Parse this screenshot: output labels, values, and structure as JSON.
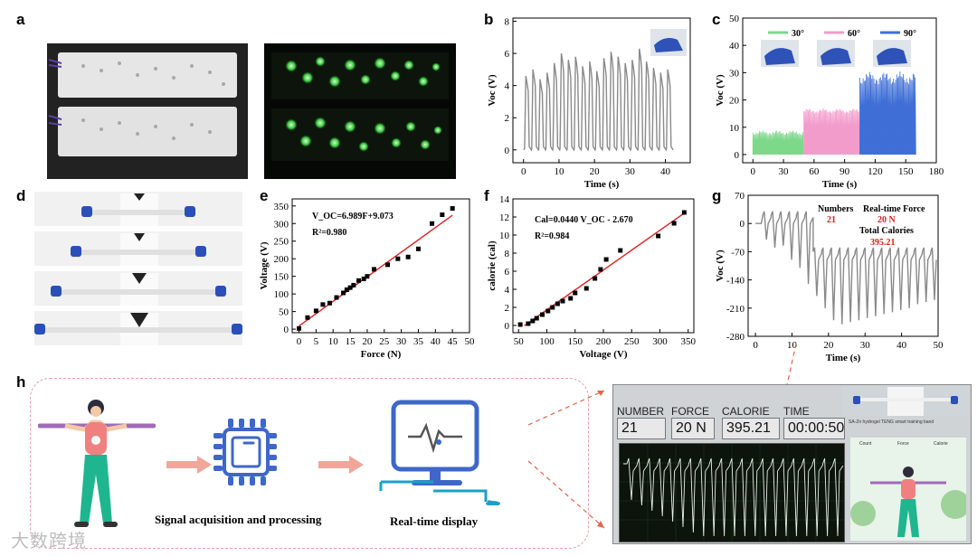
{
  "panels": {
    "a": "a",
    "b": "b",
    "c": "c",
    "d": "d",
    "e": "e",
    "f": "f",
    "g": "g",
    "h": "h"
  },
  "panel_b": {
    "xlabel": "Time (s)",
    "ylabel": "Voc (V)",
    "xticks": [
      "0",
      "10",
      "20",
      "30",
      "40"
    ],
    "yticks": [
      "0",
      "2",
      "4",
      "6",
      "8"
    ]
  },
  "panel_c": {
    "xlabel": "Time (s)",
    "ylabel": "Voc (V)",
    "xticks": [
      "0",
      "30",
      "60",
      "90",
      "120",
      "150",
      "180"
    ],
    "yticks": [
      "0",
      "10",
      "20",
      "30",
      "40",
      "50"
    ],
    "legend": [
      {
        "label": "30°",
        "color": "#7dd88a"
      },
      {
        "label": "60°",
        "color": "#f29ccc"
      },
      {
        "label": "90°",
        "color": "#3f6fd6"
      }
    ]
  },
  "panel_g": {
    "xlabel": "Time (s)",
    "ylabel": "Voc (V)",
    "xticks": [
      "0",
      "10",
      "20",
      "30",
      "40",
      "50"
    ],
    "yticks": [
      "70",
      "0",
      "-70",
      "-140",
      "-210",
      "-280"
    ],
    "numbers_label": "Numbers",
    "numbers_value": "21",
    "force_label": "Real-time Force",
    "force_value": "20 N",
    "calories_label": "Total Calories",
    "calories_value": "395.21"
  },
  "chart_data": [
    {
      "type": "scatter",
      "panel": "e",
      "title": "",
      "xlabel": "Force (N)",
      "ylabel": "Voltage (V)",
      "x": [
        0,
        2.5,
        5,
        7,
        9,
        11,
        13,
        14,
        15,
        16,
        17.5,
        19,
        20,
        22,
        26,
        29,
        32,
        35,
        39,
        42,
        45
      ],
      "y": [
        2,
        33,
        52,
        70,
        74,
        90,
        103,
        112,
        118,
        125,
        138,
        143,
        150,
        170,
        183,
        200,
        205,
        228,
        300,
        325,
        343
      ],
      "fit_label": "V_OC=6.989F+9.073",
      "r2_label": "R²=0.980",
      "xlim": [
        -2,
        50
      ],
      "ylim": [
        -10,
        370
      ],
      "xticks": [
        "0",
        "5",
        "10",
        "15",
        "20",
        "25",
        "30",
        "35",
        "40",
        "45",
        "50"
      ],
      "yticks": [
        "0",
        "50",
        "100",
        "150",
        "200",
        "250",
        "300",
        "350"
      ]
    },
    {
      "type": "scatter",
      "panel": "f",
      "title": "",
      "xlabel": "Voltage (V)",
      "ylabel": "calorie (cal)",
      "x": [
        53,
        67,
        75,
        82,
        92,
        102,
        110,
        119,
        128,
        142,
        150,
        170,
        185,
        195,
        205,
        230,
        297,
        325,
        343
      ],
      "y": [
        0.1,
        0.2,
        0.5,
        0.8,
        1.2,
        1.6,
        2.0,
        2.4,
        2.7,
        3.0,
        3.6,
        4.1,
        5.2,
        6.2,
        7.3,
        8.3,
        9.9,
        11.3,
        12.5
      ],
      "fit_label": "Cal=0.0440 V_OC - 2.670",
      "r2_label": "R²=0.984",
      "xlim": [
        40,
        360
      ],
      "ylim": [
        -0.8,
        14
      ],
      "xticks": [
        "50",
        "100",
        "150",
        "200",
        "250",
        "300",
        "350"
      ],
      "yticks": [
        "0",
        "2",
        "4",
        "6",
        "8",
        "10",
        "12",
        "14"
      ]
    },
    {
      "type": "line",
      "panel": "b",
      "description": "periodic Voc pulses between ~0 and ~4.5-6 V over 0-43 s",
      "xlim": [
        -3,
        47
      ],
      "ylim": [
        -0.8,
        8.2
      ]
    },
    {
      "type": "bar",
      "panel": "c",
      "description": "three dense Voc segments",
      "segments": [
        {
          "label": "30°",
          "start": 0,
          "end": 50,
          "level": 8
        },
        {
          "label": "60°",
          "start": 50,
          "end": 105,
          "level": 16
        },
        {
          "label": "90°",
          "start": 105,
          "end": 160,
          "level": 28
        }
      ],
      "xlim": [
        -10,
        180
      ],
      "ylim": [
        -3,
        50
      ]
    },
    {
      "type": "line",
      "panel": "g",
      "description": "negative Voc pulses from 0 to about -250 V over 0-50 s",
      "xlim": [
        -2,
        50
      ],
      "ylim": [
        -280,
        70
      ]
    }
  ],
  "panel_h": {
    "signal_caption": "Signal acquisition and processing",
    "display_caption": "Real-time display",
    "software": {
      "number_label": "NUMBER",
      "number_value": "21",
      "force_label": "FORCE",
      "force_value": "20 N",
      "calorie_label": "CALORIE",
      "calorie_value": "395.21",
      "time_label": "TIME",
      "time_value": "00:00:50",
      "band_caption": "SA-Zn hydrogel TENG smart training band",
      "mini_labels": [
        "Count",
        "Force",
        "Calorie"
      ]
    }
  },
  "watermark": "大数跨境",
  "colors": {
    "gray": "#8a8a8a",
    "red": "#dd1c1c",
    "fit": "#e02020",
    "screen_bg": "#0e1a0e"
  }
}
